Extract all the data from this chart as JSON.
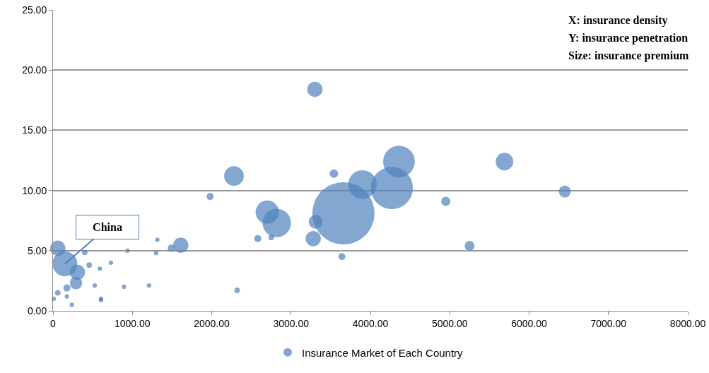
{
  "chart_data": {
    "type": "bubble",
    "xlabel": null,
    "legend": "bottom",
    "grid": "y",
    "marker": "circle",
    "xlim": [
      0,
      8000
    ],
    "ylim": [
      0,
      25
    ],
    "xticks": [
      {
        "value": 0,
        "label": "0"
      },
      {
        "value": 1000,
        "label": "1000.00"
      },
      {
        "value": 2000,
        "label": "2000.00"
      },
      {
        "value": 3000,
        "label": "3000.00"
      },
      {
        "value": 4000,
        "label": "4000.00"
      },
      {
        "value": 5000,
        "label": "5000.00"
      },
      {
        "value": 6000,
        "label": "6000.00"
      },
      {
        "value": 7000,
        "label": "7000.00"
      },
      {
        "value": 8000,
        "label": "8000.00"
      }
    ],
    "yticks": [
      {
        "value": 0,
        "label": "0.00"
      },
      {
        "value": 5,
        "label": "5.00"
      },
      {
        "value": 10,
        "label": "10.00"
      },
      {
        "value": 15,
        "label": "15.00"
      },
      {
        "value": 20,
        "label": "20.00"
      },
      {
        "value": 25,
        "label": "25.00"
      }
    ],
    "annotations": [
      "X: insurance density",
      "Y: insurance penetration",
      "Size: insurance premium",
      {
        "text": "China",
        "x": 150,
        "y": 3.9
      }
    ],
    "series": [
      {
        "name": "Insurance Market of Each Country",
        "color": "#4f81bd",
        "x": [
          3300,
          2280,
          1980,
          3540,
          4360,
          3900,
          4270,
          3660,
          2700,
          2820,
          3310,
          3280,
          2580,
          2750,
          3640,
          5690,
          4950,
          6450,
          5250,
          2320,
          1610,
          1490,
          1315,
          1300,
          1210,
          940,
          895,
          730,
          605,
          590,
          60,
          150,
          307,
          290,
          400,
          456,
          526,
          175,
          60,
          175,
          237,
          9,
          605
        ],
        "values": [
          18.4,
          11.2,
          9.5,
          11.4,
          12.4,
          10.5,
          10.2,
          8.1,
          8.2,
          7.3,
          7.4,
          6.0,
          6.0,
          6.1,
          4.5,
          12.4,
          9.1,
          9.9,
          5.4,
          1.7,
          5.45,
          5.2,
          5.9,
          4.8,
          2.1,
          5.0,
          2.0,
          4.0,
          1.0,
          3.5,
          5.2,
          3.9,
          3.2,
          2.3,
          4.85,
          3.8,
          2.1,
          1.9,
          1.5,
          1.2,
          0.5,
          1.0,
          0.9
        ],
        "sizes": [
          0.06,
          0.1,
          0.013,
          0.019,
          0.26,
          0.21,
          0.46,
          1,
          0.14,
          0.21,
          0.05,
          0.06,
          0.013,
          0.008,
          0.013,
          0.08,
          0.022,
          0.037,
          0.025,
          0.008,
          0.06,
          0.013,
          0.005,
          0.005,
          0.005,
          0.005,
          0.005,
          0.005,
          0.005,
          0.005,
          0.06,
          0.16,
          0.06,
          0.04,
          0.008,
          0.008,
          0.005,
          0.013,
          0.008,
          0.005,
          0.005,
          0.005,
          0.005
        ]
      }
    ]
  }
}
